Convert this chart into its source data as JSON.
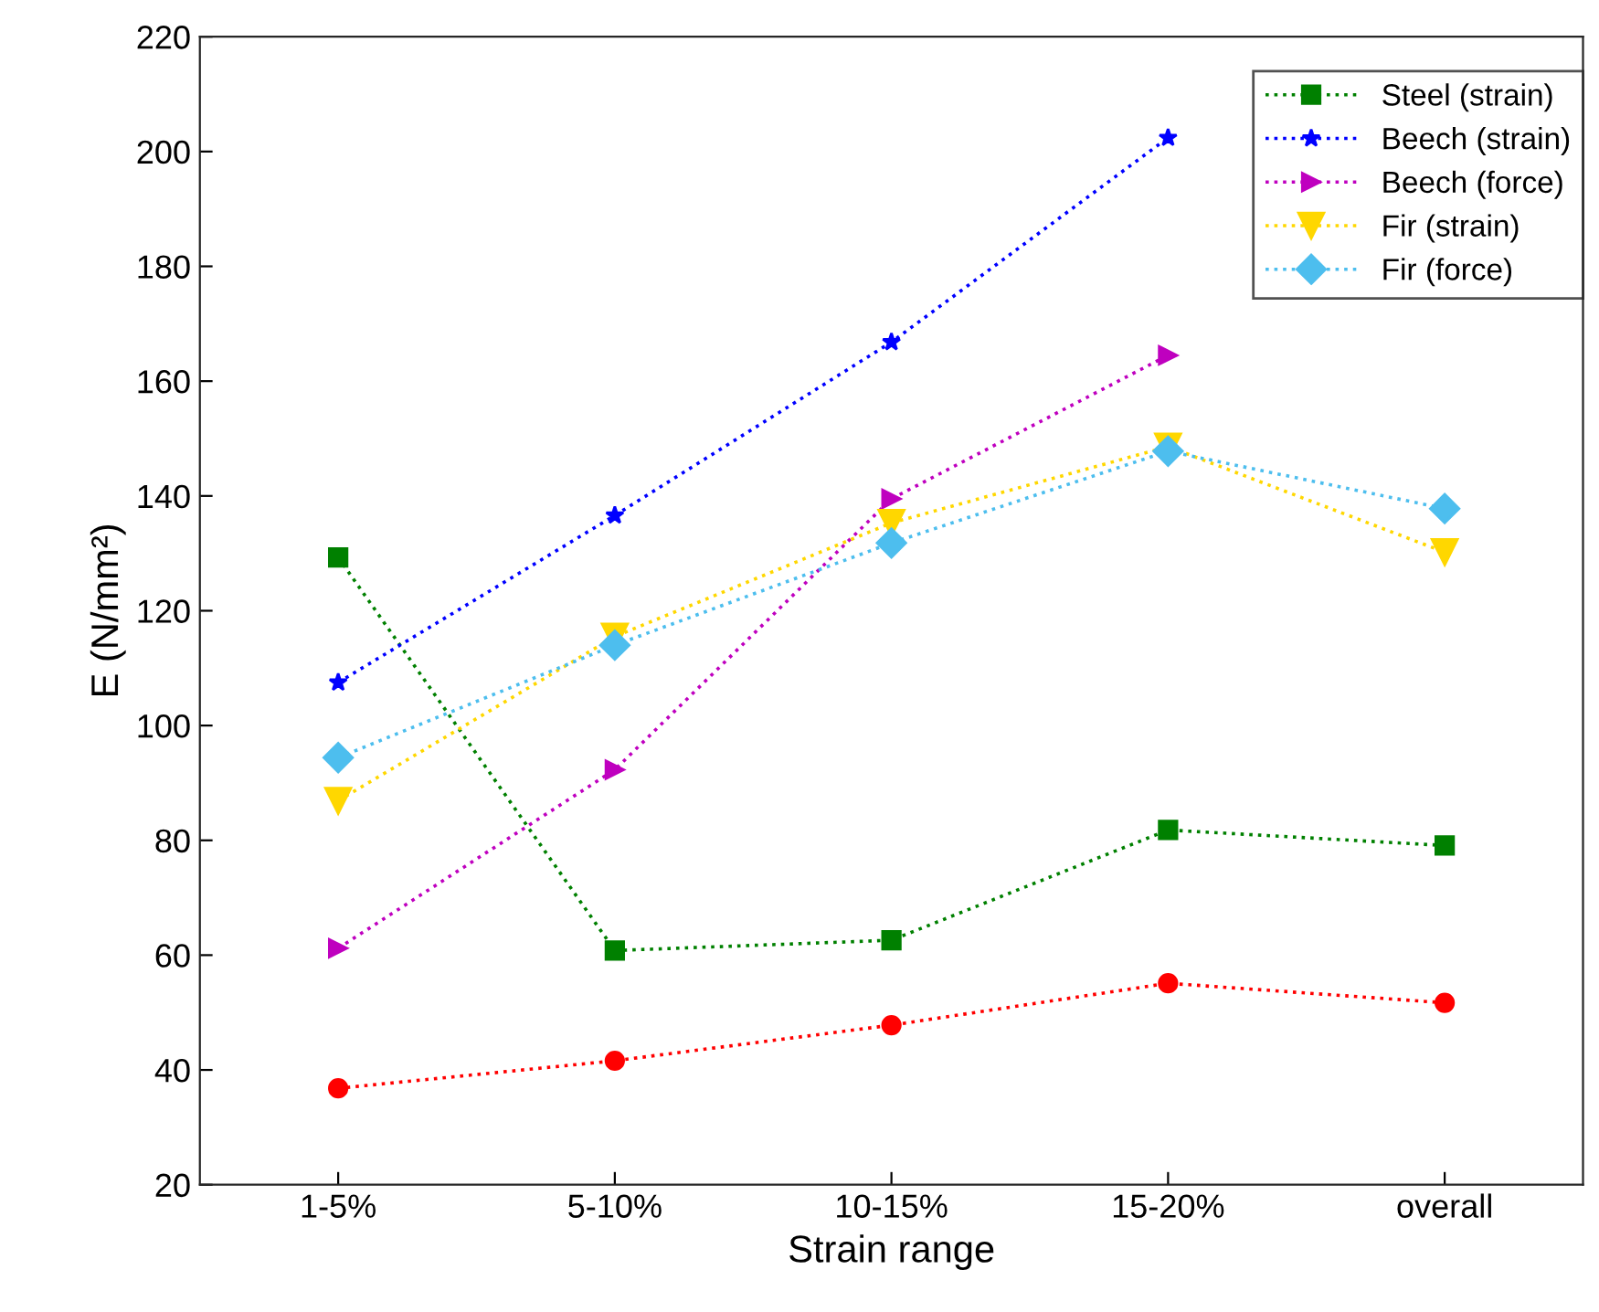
{
  "chart_data": {
    "type": "line",
    "xlabel": "Strain range",
    "ylabel": "E (N/mm²)",
    "categories": [
      "1-5%",
      "5-10%",
      "10-15%",
      "15-20%",
      "overall"
    ],
    "ylim": [
      20,
      220
    ],
    "yticks": [
      20,
      40,
      60,
      80,
      100,
      120,
      140,
      160,
      180,
      200,
      220
    ],
    "grid": false,
    "legend": "top right",
    "line_style": "dotted",
    "series": [
      {
        "color": "#ff0000",
        "marker": "circle",
        "values": [
          36.8,
          41.6,
          47.8,
          55.1,
          51.7
        ]
      },
      {
        "name": "Steel (strain)",
        "color": "#008000",
        "marker": "square",
        "values": [
          129.3,
          60.8,
          62.6,
          81.8,
          79.1
        ]
      },
      {
        "name": "Beech (strain)",
        "color": "#0000ff",
        "marker": "star",
        "values": [
          107.5,
          136.6,
          166.8,
          202.4,
          null
        ]
      },
      {
        "name": "Beech (force)",
        "color": "#bf00bf",
        "marker": "triangle",
        "values": [
          61.2,
          92.3,
          139.5,
          164.5,
          null
        ]
      },
      {
        "name": "Fir (strain)",
        "color": "#ffd700",
        "marker": "triangle_down",
        "values": [
          86.9,
          115.5,
          135.3,
          148.6,
          130.2
        ]
      },
      {
        "name": "Fir (force)",
        "color": "#4dbeee",
        "marker": "diamond",
        "values": [
          94.4,
          114.0,
          131.8,
          147.8,
          137.8
        ]
      }
    ]
  }
}
